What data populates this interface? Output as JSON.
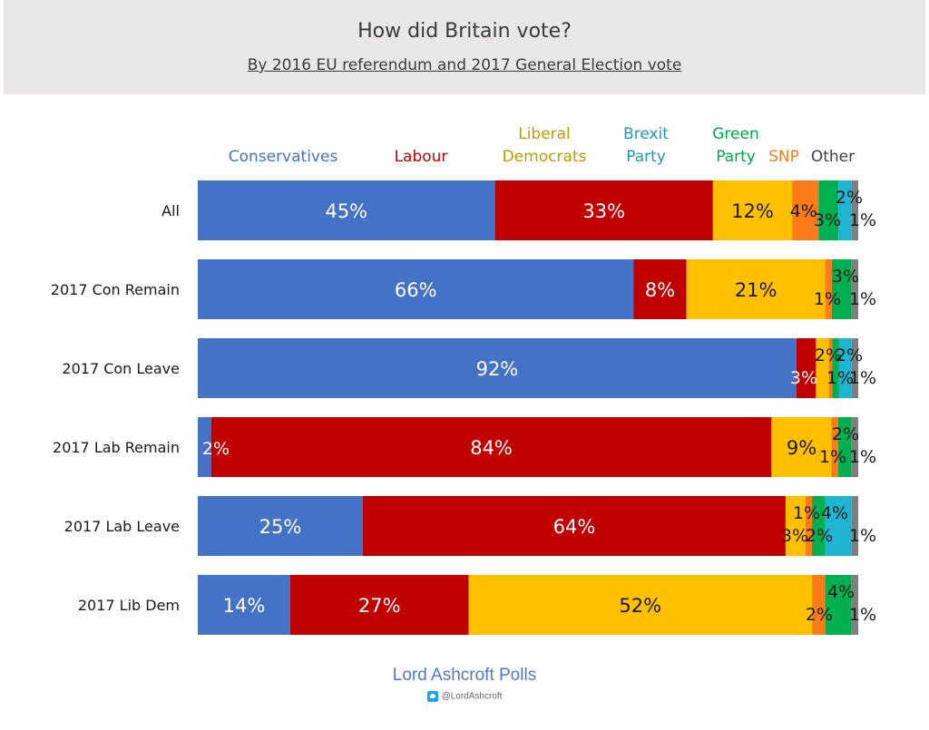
{
  "header": {
    "title": "How did Britain vote?",
    "subtitle": "By 2016 EU referendum and 2017 General Election vote"
  },
  "footer": {
    "source": "Lord Ashcroft Polls",
    "twitter_icon": "twitter-icon",
    "handle": "@LordAshcroft"
  },
  "chart_data": {
    "type": "bar",
    "orientation": "horizontal",
    "stacked": true,
    "normalized": true,
    "legend_position": "top",
    "grid": false,
    "categories": [
      "All",
      "2017 Con Remain",
      "2017 Con Leave",
      "2017 Lab Remain",
      "2017 Lab Leave",
      "2017 Lib Dem"
    ],
    "series": [
      {
        "name": "Conservatives",
        "legend_lines": [
          "Conservatives"
        ],
        "color": "#4472c4",
        "values": [
          45,
          66,
          92,
          2,
          25,
          14
        ],
        "labels": [
          "45%",
          "66%",
          "92%",
          "2%",
          "25%",
          "14%"
        ]
      },
      {
        "name": "Labour",
        "legend_lines": [
          "Labour"
        ],
        "color": "#c00000",
        "values": [
          33,
          8,
          3,
          84,
          64,
          27
        ],
        "labels": [
          "33%",
          "8%",
          "3%",
          "84%",
          "64%",
          "27%"
        ]
      },
      {
        "name": "Liberal Democrats",
        "legend_lines": [
          "Liberal",
          "Democrats"
        ],
        "color": "#ffc000",
        "values": [
          12,
          21,
          2,
          9,
          3,
          52
        ],
        "labels": [
          "12%",
          "21%",
          "2%",
          "9%",
          "3%",
          "52%"
        ]
      },
      {
        "name": "SNP",
        "legend_lines": [
          "SNP"
        ],
        "color": "#fa7b17",
        "values": [
          4,
          1,
          0.5,
          1,
          1,
          2
        ],
        "labels": [
          "4%",
          "1%",
          "",
          "1%",
          "1%",
          "2%"
        ]
      },
      {
        "name": "Green Party",
        "legend_lines": [
          "Green",
          "Party"
        ],
        "color": "#00b050",
        "values": [
          3,
          3,
          1,
          2,
          2,
          4
        ],
        "labels": [
          "3%",
          "3%",
          "1%",
          "2%",
          "2%",
          "4%"
        ]
      },
      {
        "name": "Brexit Party",
        "legend_lines": [
          "Brexit",
          "Party"
        ],
        "color": "#1fb4d2",
        "values": [
          2,
          0,
          2,
          0,
          4,
          0
        ],
        "labels": [
          "2%",
          "",
          "2%",
          "",
          "4%",
          ""
        ]
      },
      {
        "name": "Other",
        "legend_lines": [
          "Other"
        ],
        "color": "#7f7f7f",
        "values": [
          1,
          1,
          1,
          1,
          1,
          1
        ],
        "labels": [
          "1%",
          "1%",
          "1%",
          "1%",
          "1%",
          "1%"
        ]
      }
    ]
  }
}
